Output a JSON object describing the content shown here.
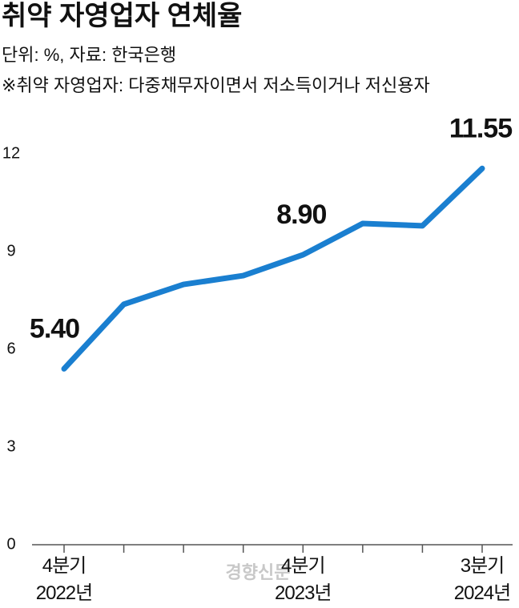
{
  "chart_data": {
    "type": "line",
    "title": "취약 자영업자 연체율",
    "subtitle": "단위: %, 자료: 한국은행",
    "note": "※취약 자영업자: 다중채무자이면서 저소득이거나 저신용자",
    "watermark": "경향신문",
    "categories": [
      "4분기\n2022년",
      null,
      null,
      null,
      "4분기\n2023년",
      null,
      null,
      "3분기\n2024년"
    ],
    "series": [
      {
        "name": "연체율",
        "color": "#1a7fd0",
        "values": [
          5.4,
          7.38,
          7.99,
          8.26,
          8.9,
          9.86,
          9.79,
          11.55
        ],
        "value_labels": [
          "5.40",
          null,
          null,
          null,
          "8.90",
          null,
          null,
          "11.55"
        ]
      }
    ],
    "ylim": [
      0,
      12
    ],
    "yticks": [
      0,
      3,
      6,
      9,
      12
    ]
  }
}
